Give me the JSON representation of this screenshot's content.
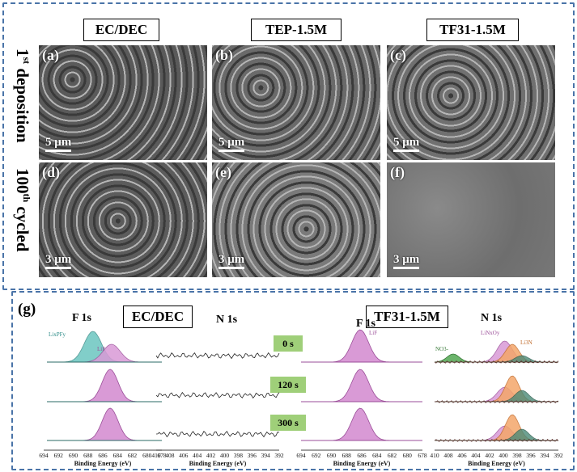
{
  "top": {
    "columns": [
      "EC/DEC",
      "TEP-1.5M",
      "TF31-1.5M"
    ],
    "rows": [
      {
        "label": "1",
        "sup": "st",
        "rest": " deposition"
      },
      {
        "label": "100",
        "sup": "th",
        "rest": " cycled"
      }
    ],
    "panels": [
      {
        "label": "(a)",
        "scale": "5 μm",
        "tone": "#5a5a5a"
      },
      {
        "label": "(b)",
        "scale": "5 μm",
        "tone": "#6a6a6a"
      },
      {
        "label": "(c)",
        "scale": "5 μm",
        "tone": "#707070"
      },
      {
        "label": "(d)",
        "scale": "3 μm",
        "tone": "#5c5c5c"
      },
      {
        "label": "(e)",
        "scale": "3 μm",
        "tone": "#7a7a7a"
      },
      {
        "label": "(f)",
        "scale": "3 μm",
        "tone": "#808080"
      }
    ]
  },
  "bottom": {
    "panel_label": "(g)",
    "group_left": "EC/DEC",
    "group_right": "TF31-1.5M",
    "times": [
      "0 s",
      "120 s",
      "300 s"
    ],
    "xps_titles": {
      "f1s": "F 1s",
      "n1s": "N 1s"
    },
    "xlabel": "Binding Energy (eV)",
    "f_ticks": [
      "694",
      "692",
      "690",
      "688",
      "686",
      "684",
      "682",
      "680",
      "678"
    ],
    "n_ticks": [
      "410",
      "408",
      "406",
      "404",
      "402",
      "400",
      "398",
      "396",
      "394",
      "392"
    ],
    "peaks": {
      "lipf": "LixPFy",
      "lif": "LiF",
      "lino": "LiNxOy",
      "li3n": "Li3N",
      "no3": "NO3-"
    }
  },
  "chart_data": [
    {
      "type": "line",
      "panel": "EC/DEC F 1s",
      "x_range": [
        694,
        678
      ],
      "series": [
        {
          "name": "LixPFy",
          "time": "0 s",
          "peak_center": 687.5
        },
        {
          "name": "LiF",
          "time": "0 s",
          "peak_center": 685.0
        },
        {
          "name": "LiF",
          "time": "120 s",
          "peak_center": 685.0
        },
        {
          "name": "LiF",
          "time": "300 s",
          "peak_center": 685.0
        }
      ]
    },
    {
      "type": "line",
      "panel": "TF31-1.5M N 1s",
      "x_range": [
        410,
        392
      ],
      "series": [
        {
          "name": "NO3-",
          "peak_center": 407.5
        },
        {
          "name": "LiNxOy",
          "peak_center": 399.5
        },
        {
          "name": "Li3N",
          "peak_center": 398.0
        }
      ]
    }
  ],
  "colors": {
    "frame": "#4a74a8",
    "lif": "#d99ad6",
    "lipf": "#6cc6c0",
    "no3": "#6bb46b",
    "li3n": "#f4a66a",
    "time_bg": "#9fcf79"
  }
}
